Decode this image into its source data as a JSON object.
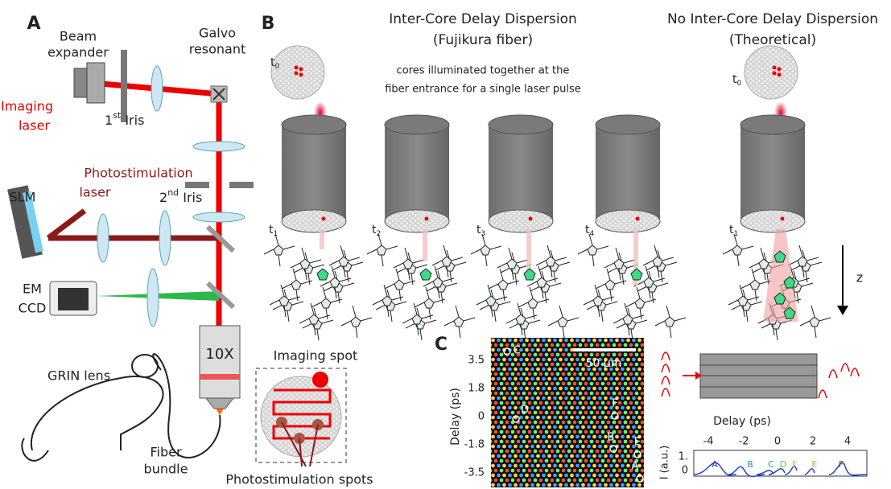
{
  "panel_a": {
    "label": "A",
    "beam_expander": [
      "Beam",
      "expander"
    ],
    "galvo": [
      "Galvo",
      "resonant"
    ],
    "imaging_laser": [
      "Imaging",
      "laser"
    ],
    "iris1": {
      "num": "1",
      "sup": "st",
      "text": " Iris"
    },
    "photostim_laser": [
      "Photostimulation",
      "laser"
    ],
    "iris2": {
      "num": "2",
      "sup": "nd",
      "text": " Iris"
    },
    "slm": "SLM",
    "emccd": [
      "EM",
      "CCD"
    ],
    "objective": "10X",
    "grin": "GRIN lens",
    "fiber_bundle": [
      "Fiber",
      "bundle"
    ],
    "imaging_spot": "Imaging spot",
    "photostim_spots": "Photostimulation spots"
  },
  "panel_b": {
    "label": "B",
    "left_title": [
      "Inter-Core Delay Dispersion",
      "(Fujikura fiber)"
    ],
    "right_title": [
      "No Inter-Core Delay Dispersion",
      "(Theoretical)"
    ],
    "note": [
      "cores illuminated together at the",
      "fiber entrance for a single laser pulse"
    ],
    "time_labels": [
      {
        "t": "t",
        "sub": "0"
      },
      {
        "t": "t",
        "sub": "1"
      },
      {
        "t": "t",
        "sub": "2"
      },
      {
        "t": "t",
        "sub": "3"
      },
      {
        "t": "t",
        "sub": "4"
      },
      {
        "t": "t",
        "sub": "1"
      },
      {
        "t": "t",
        "sub": "0"
      }
    ],
    "z": "z"
  },
  "panel_c": {
    "label": "C",
    "colorbar_ticks": [
      "3.5",
      "1.8",
      "0",
      "-1.8",
      "-3.5"
    ],
    "colorbar_label": "Delay (ps)",
    "scale_bar": "50 µm",
    "core_labels": [
      "C",
      "D",
      "F",
      "B",
      "E",
      "A"
    ],
    "plot_x_label": "Delay (ps)",
    "plot_x_ticks": [
      "-4",
      "-2",
      "0",
      "2",
      "4"
    ],
    "plot_y_label": "I (a.u.)",
    "plot_y_ticks": [
      "1.",
      "0"
    ],
    "peak_labels": [
      "A",
      "B",
      "C",
      "D",
      "F",
      "E",
      "F"
    ]
  }
}
